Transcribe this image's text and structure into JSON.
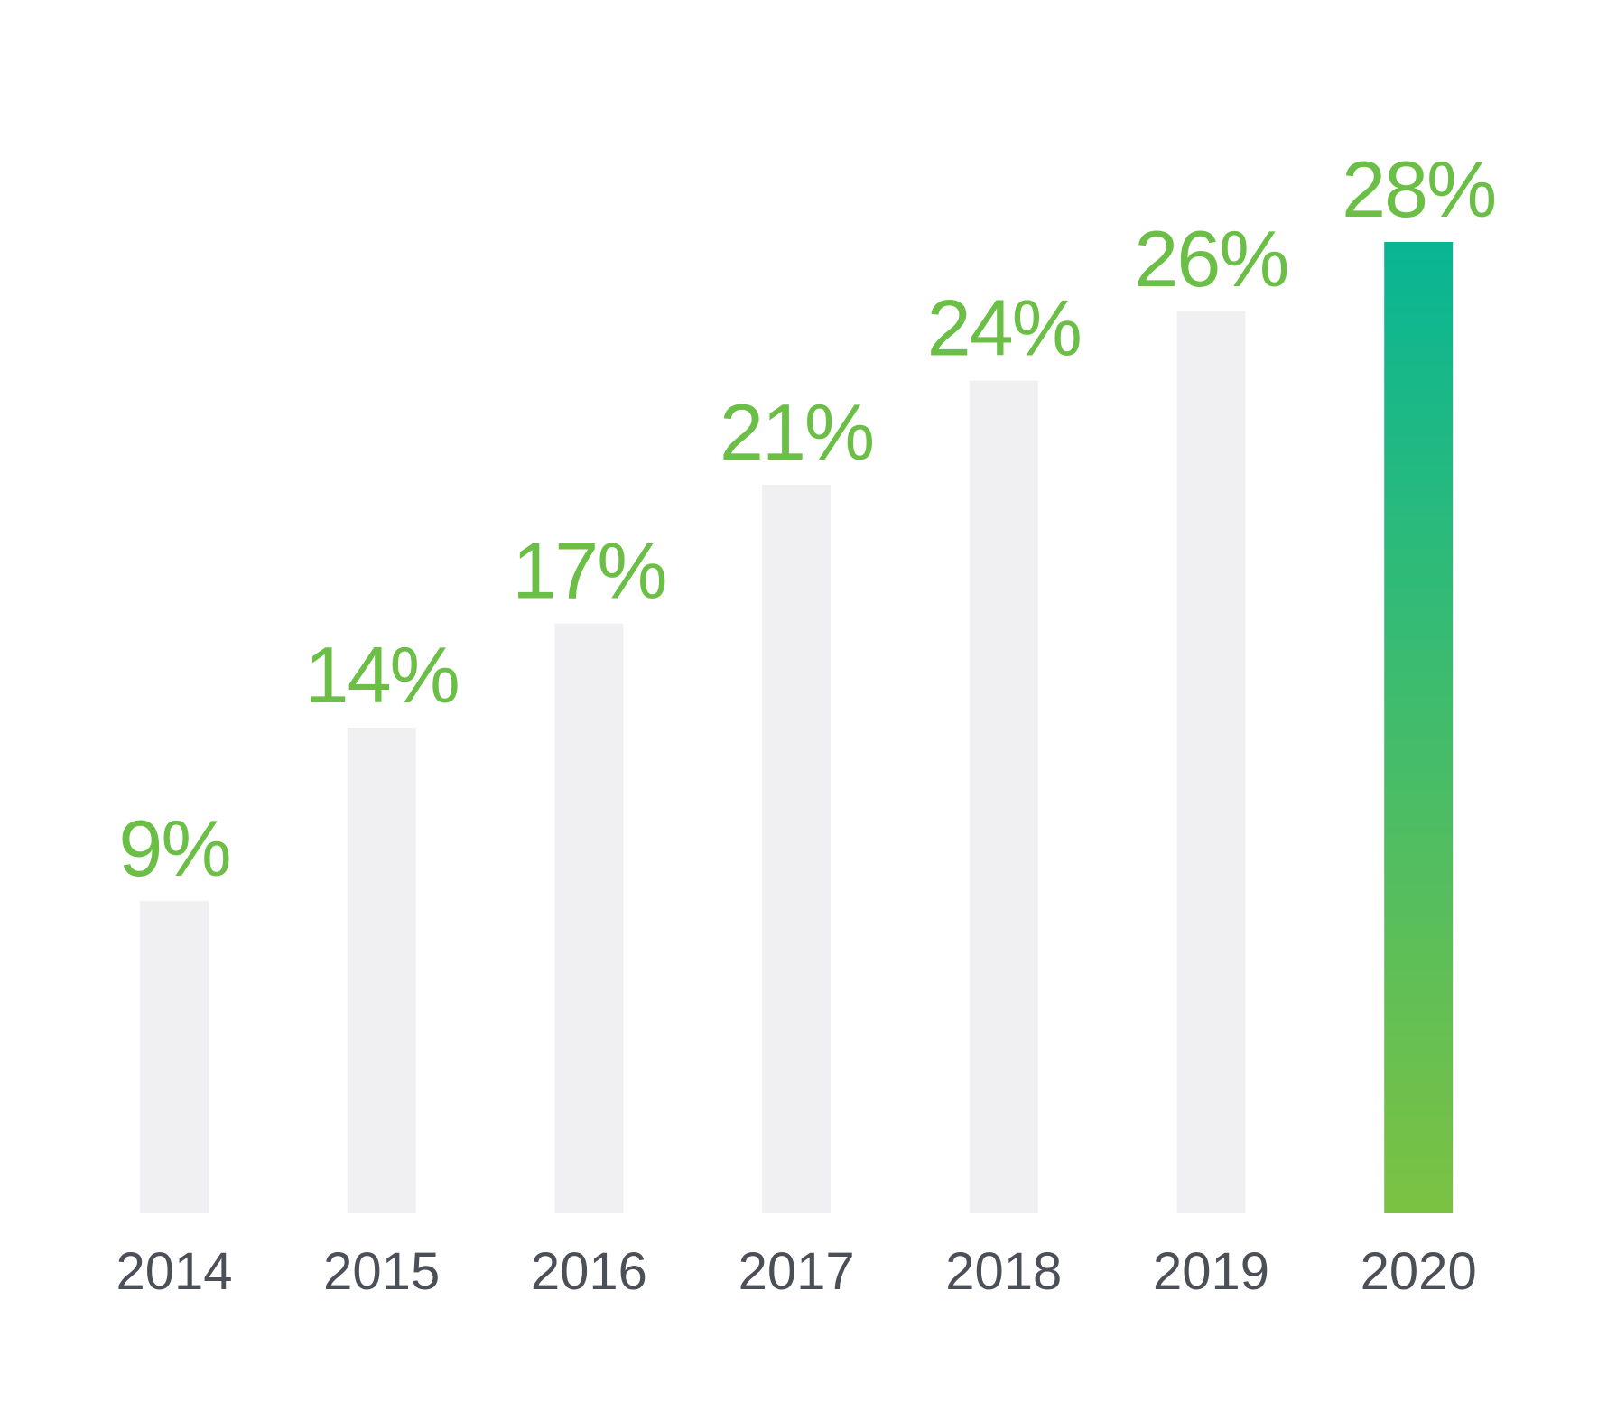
{
  "chart_data": {
    "type": "bar",
    "categories": [
      "2014",
      "2015",
      "2016",
      "2017",
      "2018",
      "2019",
      "2020"
    ],
    "values": [
      9,
      14,
      17,
      21,
      24,
      26,
      28
    ],
    "value_labels": [
      "9%",
      "14%",
      "17%",
      "21%",
      "24%",
      "26%",
      "28%"
    ],
    "highlight_index": 6,
    "title": "",
    "xlabel": "",
    "ylabel": "",
    "ylim": [
      0,
      28
    ],
    "grid": false,
    "legend": "none",
    "colors": {
      "bar_default": "#f0f0f2",
      "bar_highlight_top": "#08b694",
      "bar_highlight_bottom": "#7cc242",
      "value_label": "#6cbf46",
      "tick_label": "#4b4f57"
    }
  }
}
